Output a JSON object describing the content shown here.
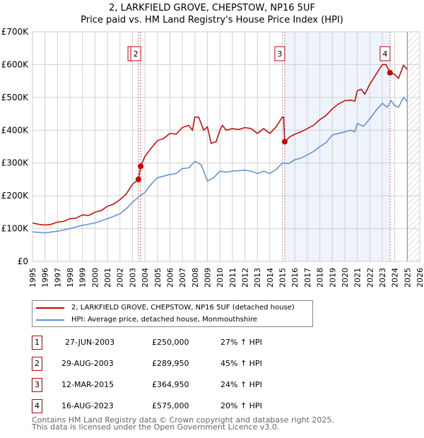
{
  "title": "2, LARKFIELD GROVE, CHEPSTOW, NP16 5UF",
  "subtitle": "Price paid vs. HM Land Registry's House Price Index (HPI)",
  "chart_data": {
    "type": "line",
    "xlim": [
      1995,
      2026
    ],
    "ylim": [
      0,
      700000
    ],
    "x_ticks": [
      "1995",
      "1996",
      "1997",
      "1998",
      "1999",
      "2000",
      "2001",
      "2002",
      "2003",
      "2004",
      "2005",
      "2006",
      "2007",
      "2008",
      "2009",
      "2010",
      "2011",
      "2012",
      "2013",
      "2014",
      "2015",
      "2016",
      "2017",
      "2018",
      "2019",
      "2020",
      "2021",
      "2022",
      "2023",
      "2024",
      "2025",
      "2026"
    ],
    "y_ticks": [
      {
        "v": 0,
        "label": "£0"
      },
      {
        "v": 100000,
        "label": "£100K"
      },
      {
        "v": 200000,
        "label": "£200K"
      },
      {
        "v": 300000,
        "label": "£300K"
      },
      {
        "v": 400000,
        "label": "£400K"
      },
      {
        "v": 500000,
        "label": "£500K"
      },
      {
        "v": 600000,
        "label": "£600K"
      },
      {
        "v": 700000,
        "label": "£700K"
      }
    ],
    "grid": true,
    "shaded_range": [
      2015.19,
      2023.62
    ],
    "hatched_from": 2025.0,
    "series": [
      {
        "name": "2, LARKFIELD GROVE, CHEPSTOW, NP16 5UF (detached house)",
        "color": "#cc0000",
        "x": [
          1995,
          1995.5,
          1996,
          1996.5,
          1997,
          1997.5,
          1998,
          1998.5,
          1999,
          1999.5,
          2000,
          2000.5,
          2001,
          2001.5,
          2002,
          2002.5,
          2003,
          2003.48,
          2003.66,
          2004,
          2004.5,
          2005,
          2005.5,
          2006,
          2006.5,
          2007,
          2007.5,
          2007.8,
          2008,
          2008.3,
          2008.7,
          2009,
          2009.3,
          2009.7,
          2010,
          2010.2,
          2010.5,
          2011,
          2011.5,
          2012,
          2012.5,
          2013,
          2013.5,
          2014,
          2014.5,
          2015,
          2015.1,
          2015.19,
          2015.6,
          2016,
          2016.5,
          2017,
          2017.5,
          2018,
          2018.5,
          2019,
          2019.5,
          2020,
          2020.5,
          2020.8,
          2021,
          2021.3,
          2021.6,
          2022,
          2022.5,
          2023,
          2023.3,
          2023.62,
          2024,
          2024.3,
          2024.7,
          2025
        ],
        "y": [
          117000,
          113000,
          111000,
          113000,
          120000,
          122000,
          130000,
          132000,
          142000,
          140000,
          150000,
          155000,
          168000,
          175000,
          188000,
          205000,
          235000,
          250000,
          289950,
          320000,
          345000,
          368000,
          375000,
          390000,
          388000,
          408000,
          415000,
          400000,
          440000,
          440000,
          400000,
          410000,
          360000,
          365000,
          400000,
          415000,
          400000,
          405000,
          402000,
          408000,
          405000,
          390000,
          405000,
          390000,
          410000,
          440000,
          440000,
          364950,
          380000,
          388000,
          395000,
          405000,
          415000,
          432000,
          445000,
          465000,
          480000,
          490000,
          492000,
          488000,
          520000,
          525000,
          510000,
          540000,
          570000,
          600000,
          600000,
          575000,
          570000,
          558000,
          598000,
          585000
        ]
      },
      {
        "name": "HPI: Average price, detached house, Monmouthshire",
        "color": "#5b8fd4",
        "x": [
          1995,
          1996,
          1997,
          1998,
          1999,
          2000,
          2001,
          2002,
          2002.5,
          2003,
          2003.5,
          2004,
          2004.5,
          2005,
          2006,
          2006.5,
          2007,
          2007.5,
          2008,
          2008.5,
          2009,
          2009.5,
          2010,
          2010.5,
          2011,
          2012,
          2012.5,
          2013,
          2013.5,
          2014,
          2014.5,
          2015,
          2015.5,
          2016,
          2016.5,
          2017,
          2017.5,
          2018,
          2018.5,
          2019,
          2019.5,
          2020,
          2020.5,
          2020.8,
          2021,
          2021.5,
          2022,
          2022.5,
          2023,
          2023.4,
          2023.7,
          2024,
          2024.3,
          2024.7,
          2025
        ],
        "y": [
          90000,
          87000,
          92000,
          100000,
          110000,
          117000,
          130000,
          145000,
          160000,
          180000,
          197000,
          210000,
          235000,
          255000,
          265000,
          268000,
          283000,
          285000,
          305000,
          295000,
          245000,
          255000,
          275000,
          272000,
          275000,
          278000,
          275000,
          268000,
          275000,
          268000,
          280000,
          300000,
          298000,
          310000,
          315000,
          325000,
          335000,
          350000,
          362000,
          385000,
          390000,
          395000,
          400000,
          395000,
          420000,
          412000,
          435000,
          460000,
          482000,
          470000,
          490000,
          475000,
          470000,
          500000,
          488000
        ]
      }
    ],
    "sales": [
      {
        "label": "1",
        "x": 2003.48,
        "y": 250000,
        "date": "27-JUN-2003",
        "price": "£250,000",
        "hpi": "27% ↑ HPI"
      },
      {
        "label": "2",
        "x": 2003.66,
        "y": 289950,
        "date": "29-AUG-2003",
        "price": "£289,950",
        "hpi": "45% ↑ HPI"
      },
      {
        "label": "3",
        "x": 2015.19,
        "y": 364950,
        "date": "12-MAR-2015",
        "price": "£364,950",
        "hpi": "24% ↑ HPI"
      },
      {
        "label": "4",
        "x": 2023.62,
        "y": 575000,
        "date": "16-AUG-2023",
        "price": "£575,000",
        "hpi": "20% ↑ HPI"
      }
    ]
  },
  "footer": {
    "line1": "Contains HM Land Registry data © Crown copyright and database right 2025.",
    "line2": "This data is licensed under the Open Government Licence v3.0."
  }
}
